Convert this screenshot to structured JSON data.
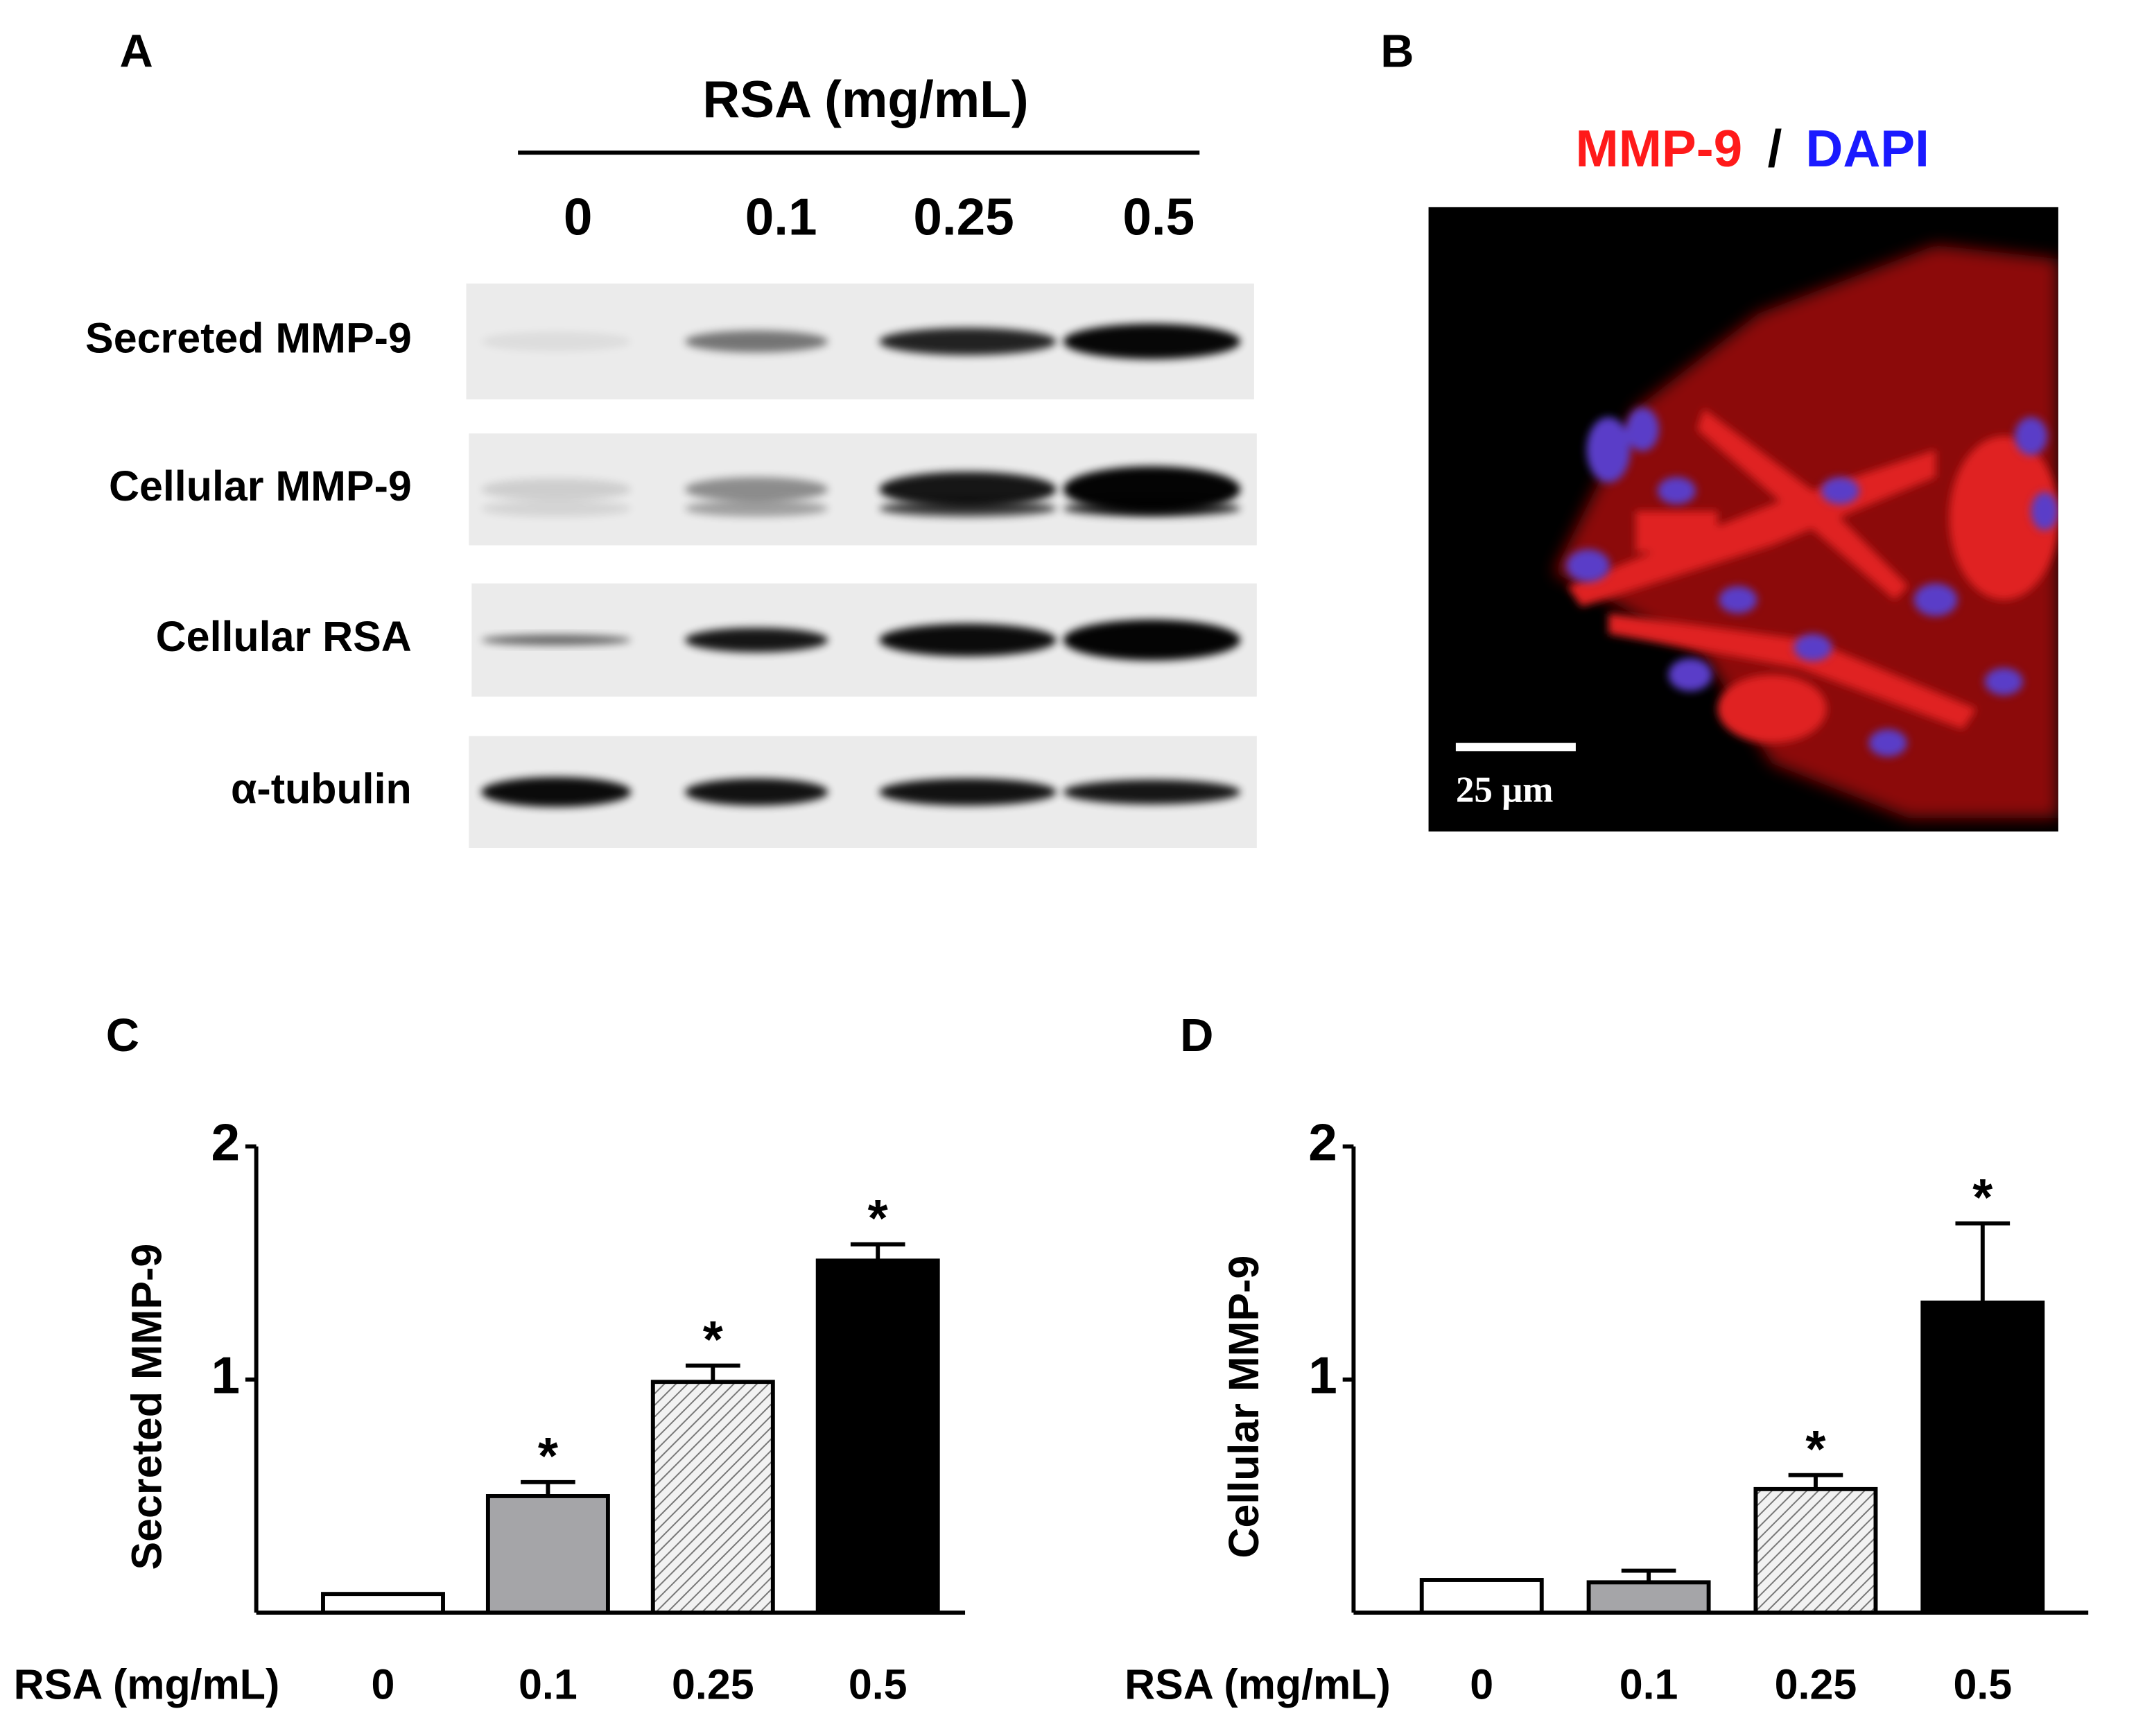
{
  "panels": {
    "A": {
      "label": "A",
      "blot": {
        "title": "RSA (mg/mL)",
        "lanes": [
          "0",
          "0.1",
          "0.25",
          "0.5"
        ],
        "rows": [
          "Secreted MMP-9",
          "Cellular MMP-9",
          "Cellular RSA",
          "α-tubulin"
        ]
      }
    },
    "B": {
      "label": "B",
      "stain": "MMP-9",
      "separator": "/",
      "counterstain": "DAPI",
      "scale_bar": "25 μm"
    },
    "C": {
      "label": "C"
    },
    "D": {
      "label": "D"
    }
  },
  "chart_data": [
    {
      "type": "bar",
      "categories": [
        "0",
        "0.1",
        "0.25",
        "0.5"
      ],
      "xlabel": "RSA (mg/mL)",
      "ylabel": "Secreted MMP-9",
      "values": [
        0.08,
        0.5,
        0.99,
        1.51
      ],
      "errors": [
        0,
        0.06,
        0.07,
        0.07
      ],
      "significance": [
        null,
        "*",
        "*",
        "*"
      ],
      "colors": [
        "#ffffff",
        "#a5a5a8",
        "#dcdcdc",
        "#000000"
      ],
      "hatched": [
        false,
        false,
        true,
        false
      ],
      "ylim": [
        0,
        2
      ],
      "yticks": [
        1,
        2
      ]
    },
    {
      "type": "bar",
      "categories": [
        "0",
        "0.1",
        "0.25",
        "0.5"
      ],
      "xlabel": "RSA (mg/mL)",
      "ylabel": "Cellular MMP-9",
      "values": [
        0.14,
        0.13,
        0.53,
        1.33
      ],
      "errors": [
        0,
        0.05,
        0.06,
        0.34
      ],
      "significance": [
        null,
        null,
        "*",
        "*"
      ],
      "colors": [
        "#ffffff",
        "#a5a5a8",
        "#dcdcdc",
        "#000000"
      ],
      "hatched": [
        false,
        false,
        true,
        false
      ],
      "ylim": [
        0,
        2
      ],
      "yticks": [
        1,
        2
      ]
    }
  ]
}
